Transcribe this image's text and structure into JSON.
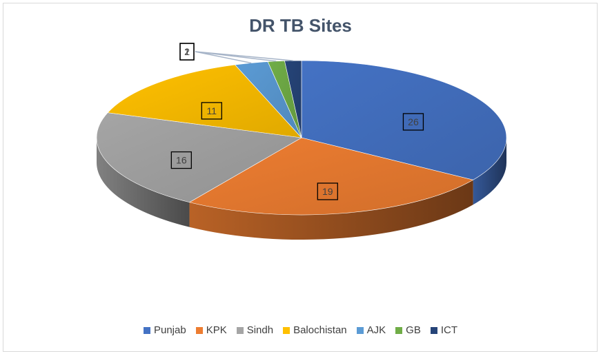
{
  "chart_data": {
    "type": "pie",
    "title": "DR TB Sites",
    "categories": [
      "Punjab",
      "KPK",
      "Sindh",
      "Balochistan",
      "AJK",
      "GB",
      "ICT"
    ],
    "values": [
      26,
      19,
      16,
      11,
      2,
      1,
      1
    ],
    "colors": [
      "#4472c4",
      "#ed7d31",
      "#a5a5a5",
      "#ffc000",
      "#5b9bd5",
      "#70ad47",
      "#264478"
    ],
    "legend_position": "bottom",
    "data_labels": true,
    "style": "3d-pie"
  }
}
